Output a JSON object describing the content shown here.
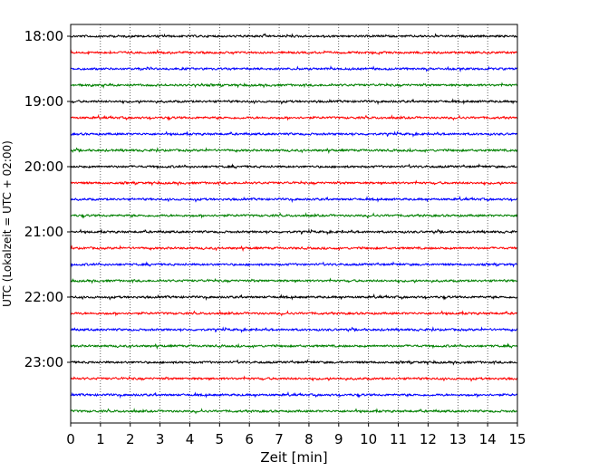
{
  "chart_data": {
    "type": "line",
    "title": "",
    "xlabel": "Zeit  [min]",
    "ylabel": "UTC (Lokalzeit = UTC + 02:00)",
    "xlim": [
      0,
      15
    ],
    "x_ticks": [
      "0",
      "1",
      "2",
      "3",
      "4",
      "5",
      "6",
      "7",
      "8",
      "9",
      "10",
      "11",
      "12",
      "13",
      "14",
      "15"
    ],
    "y_tick_labels": [
      "18:00",
      "19:00",
      "20:00",
      "21:00",
      "22:00",
      "23:00"
    ],
    "grid": "vertical dotted",
    "trace_interval_minutes": 15,
    "trace_count": 24,
    "trace_colors": [
      "#000000",
      "#ff0000",
      "#0000ff",
      "#008000"
    ],
    "series": [
      {
        "start": "18:00"
      },
      {
        "start": "18:15"
      },
      {
        "start": "18:30"
      },
      {
        "start": "18:45"
      },
      {
        "start": "19:00"
      },
      {
        "start": "19:15"
      },
      {
        "start": "19:30"
      },
      {
        "start": "19:45"
      },
      {
        "start": "20:00"
      },
      {
        "start": "20:15"
      },
      {
        "start": "20:30"
      },
      {
        "start": "20:45"
      },
      {
        "start": "21:00"
      },
      {
        "start": "21:15"
      },
      {
        "start": "21:30"
      },
      {
        "start": "21:45"
      },
      {
        "start": "22:00"
      },
      {
        "start": "22:15"
      },
      {
        "start": "22:30"
      },
      {
        "start": "22:45"
      },
      {
        "start": "23:00"
      },
      {
        "start": "23:15"
      },
      {
        "start": "23:30"
      },
      {
        "start": "23:45"
      }
    ]
  }
}
